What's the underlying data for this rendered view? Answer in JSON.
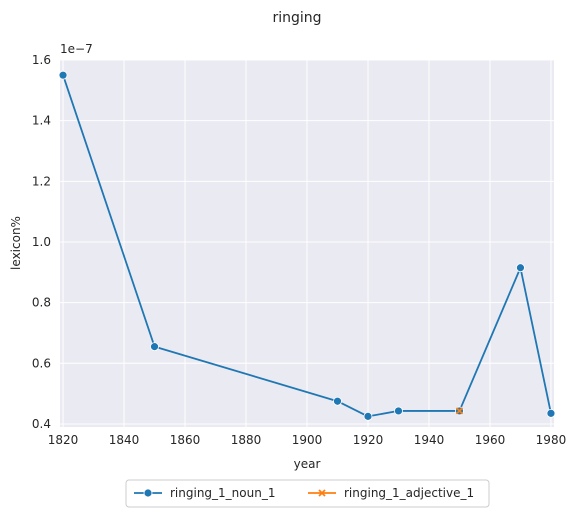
{
  "chart_data": {
    "type": "line",
    "title": "ringing",
    "xlabel": "year",
    "ylabel": "lexicon%",
    "y_offset_label": "1e−7",
    "xlim": [
      1819,
      1981
    ],
    "ylim": [
      0.39,
      1.6
    ],
    "xticks": [
      1820,
      1840,
      1860,
      1880,
      1900,
      1920,
      1940,
      1960,
      1980
    ],
    "xtick_labels": [
      "1820",
      "1840",
      "1860",
      "1880",
      "1900",
      "1920",
      "1940",
      "1960",
      "1980"
    ],
    "yticks": [
      0.4,
      0.6,
      0.8,
      1.0,
      1.2,
      1.4,
      1.6
    ],
    "ytick_labels": [
      "0.4",
      "0.6",
      "0.8",
      "1.0",
      "1.2",
      "1.4",
      "1.6"
    ],
    "grid": true,
    "legend_position": "bottom-center",
    "series": [
      {
        "name": "ringing_1_noun_1",
        "color": "#1f77b4",
        "marker": "circle",
        "x": [
          1820,
          1850,
          1910,
          1920,
          1930,
          1950,
          1970,
          1980
        ],
        "y": [
          1.55,
          0.655,
          0.475,
          0.425,
          0.443,
          0.443,
          0.915,
          0.435
        ]
      },
      {
        "name": "ringing_1_adjective_1",
        "color": "#ff7f0e",
        "marker": "x",
        "x": [
          1950
        ],
        "y": [
          0.443
        ]
      }
    ]
  }
}
